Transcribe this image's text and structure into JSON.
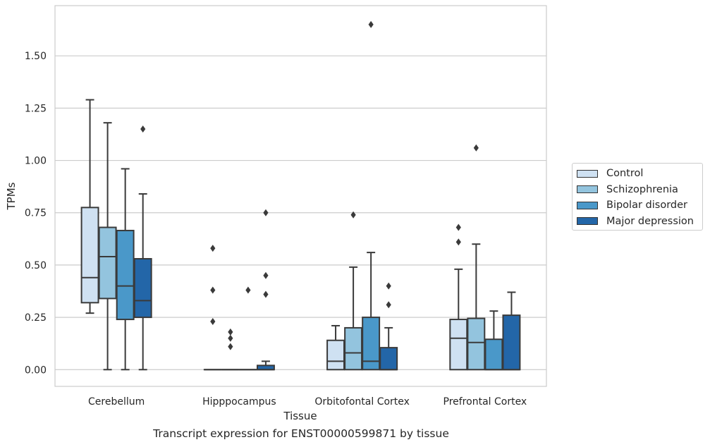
{
  "caption": "Transcript expression for ENST00000599871 by tissue",
  "chart_data": {
    "type": "box",
    "title": "",
    "xlabel": "Tissue",
    "ylabel": "TPMs",
    "ylim": [
      -0.08,
      1.74
    ],
    "yticks": [
      "0.00",
      "0.25",
      "0.50",
      "0.75",
      "1.00",
      "1.25",
      "1.50"
    ],
    "categories": [
      "Cerebellum",
      "Hipppocampus",
      "Orbitofontal Cortex",
      "Prefrontal Cortex"
    ],
    "grid": "horizontal",
    "legend_position": "right",
    "series": [
      {
        "name": "Control",
        "color": "#cfe1f2",
        "boxes": [
          {
            "min": 0.27,
            "q1": 0.32,
            "median": 0.44,
            "q3": 0.775,
            "max": 1.29,
            "outliers": []
          },
          {
            "min": 0.0,
            "q1": 0.0,
            "median": 0.0,
            "q3": 0.0,
            "max": 0.0,
            "outliers": [
              0.58,
              0.38,
              0.23
            ]
          },
          {
            "min": 0.0,
            "q1": 0.0,
            "median": 0.04,
            "q3": 0.14,
            "max": 0.21,
            "outliers": []
          },
          {
            "min": 0.0,
            "q1": 0.0,
            "median": 0.15,
            "q3": 0.24,
            "max": 0.48,
            "outliers": [
              0.68,
              0.61
            ]
          }
        ]
      },
      {
        "name": "Schizophrenia",
        "color": "#93c4de",
        "boxes": [
          {
            "min": 0.0,
            "q1": 0.34,
            "median": 0.54,
            "q3": 0.68,
            "max": 1.18,
            "outliers": []
          },
          {
            "min": 0.0,
            "q1": 0.0,
            "median": 0.0,
            "q3": 0.0,
            "max": 0.0,
            "outliers": [
              0.18,
              0.15,
              0.11
            ]
          },
          {
            "min": 0.0,
            "q1": 0.0,
            "median": 0.08,
            "q3": 0.2,
            "max": 0.49,
            "outliers": [
              0.74
            ]
          },
          {
            "min": 0.0,
            "q1": 0.0,
            "median": 0.13,
            "q3": 0.245,
            "max": 0.6,
            "outliers": [
              1.06
            ]
          }
        ]
      },
      {
        "name": "Bipolar disorder",
        "color": "#4a98c9",
        "boxes": [
          {
            "min": 0.0,
            "q1": 0.24,
            "median": 0.4,
            "q3": 0.665,
            "max": 0.96,
            "outliers": []
          },
          {
            "min": 0.0,
            "q1": 0.0,
            "median": 0.0,
            "q3": 0.0,
            "max": 0.0,
            "outliers": [
              0.38
            ]
          },
          {
            "min": 0.0,
            "q1": 0.0,
            "median": 0.04,
            "q3": 0.25,
            "max": 0.56,
            "outliers": [
              1.65
            ]
          },
          {
            "min": 0.0,
            "q1": 0.0,
            "median": 0.0,
            "q3": 0.145,
            "max": 0.28,
            "outliers": []
          }
        ]
      },
      {
        "name": "Major depression",
        "color": "#2366a8",
        "boxes": [
          {
            "min": 0.0,
            "q1": 0.25,
            "median": 0.33,
            "q3": 0.53,
            "max": 0.84,
            "outliers": [
              1.15
            ]
          },
          {
            "min": 0.0,
            "q1": 0.0,
            "median": 0.0,
            "q3": 0.02,
            "max": 0.04,
            "outliers": [
              0.75,
              0.45,
              0.36
            ]
          },
          {
            "min": 0.0,
            "q1": 0.0,
            "median": 0.0,
            "q3": 0.105,
            "max": 0.2,
            "outliers": [
              0.4,
              0.31
            ]
          },
          {
            "min": 0.0,
            "q1": 0.0,
            "median": 0.0,
            "q3": 0.26,
            "max": 0.37,
            "outliers": []
          }
        ]
      }
    ]
  }
}
